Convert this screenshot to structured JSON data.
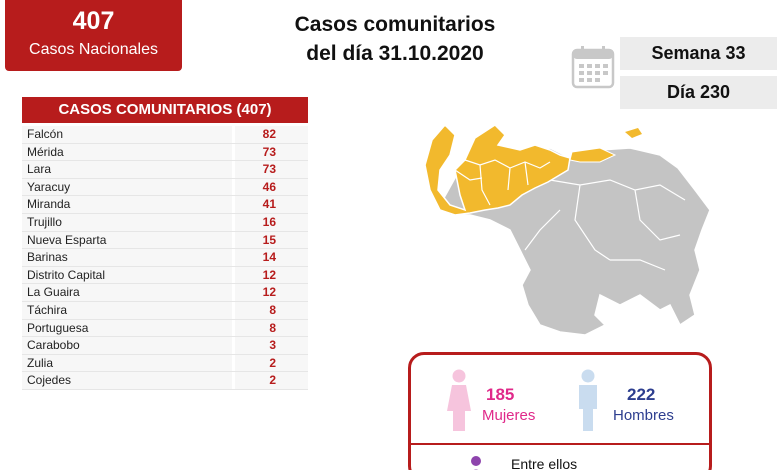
{
  "national": {
    "count": "407",
    "label": "Casos Nacionales"
  },
  "title": {
    "line1": "Casos comunitarios",
    "line2": "del día 31.10.2020"
  },
  "calendar_icon": "calendar-icon",
  "week": "Semana 33",
  "day": "Día 230",
  "table": {
    "header": "CASOS COMUNITARIOS (407)",
    "rows": [
      {
        "state": "Falcón",
        "value": "82"
      },
      {
        "state": "Mérida",
        "value": "73"
      },
      {
        "state": "Lara",
        "value": "73"
      },
      {
        "state": "Yaracuy",
        "value": "46"
      },
      {
        "state": "Miranda",
        "value": "41"
      },
      {
        "state": "Trujillo",
        "value": "16"
      },
      {
        "state": "Nueva Esparta",
        "value": "15"
      },
      {
        "state": "Barinas",
        "value": "14"
      },
      {
        "state": "Distrito Capital",
        "value": "12"
      },
      {
        "state": "La Guaira",
        "value": "12"
      },
      {
        "state": "Táchira",
        "value": "8"
      },
      {
        "state": "Portuguesa",
        "value": "8"
      },
      {
        "state": "Carabobo",
        "value": "3"
      },
      {
        "state": "Zulia",
        "value": "2"
      },
      {
        "state": "Cojedes",
        "value": "2"
      }
    ]
  },
  "map": {
    "highlight_color": "#f2b92d",
    "base_color": "#c4c4c4"
  },
  "gender": {
    "women": {
      "count": "185",
      "label": "Mujeres",
      "color": "#e0298a",
      "icon": "woman-icon"
    },
    "men": {
      "count": "222",
      "label": "Hombres",
      "color": "#2d3e8f",
      "icon": "man-icon"
    },
    "footer": "Entre ellos",
    "footer_icon": "person-icon"
  },
  "colors": {
    "brand": "#b71c1c"
  }
}
